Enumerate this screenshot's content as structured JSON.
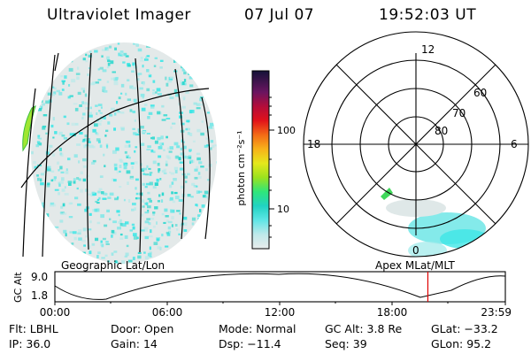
{
  "header": {
    "title": "Ultraviolet Imager",
    "date": "07 Jul 07",
    "time": "19:52:03 UT"
  },
  "colorbar": {
    "label": "photon cm⁻²s⁻¹",
    "ticks": [
      "100",
      "10"
    ]
  },
  "polar": {
    "clock_labels": {
      "top": "12",
      "left": "18",
      "right": "6",
      "bottom": "0"
    },
    "lat_labels": [
      "60",
      "70",
      "80"
    ]
  },
  "projection_labels": {
    "left": "Geographic Lat/Lon",
    "right": "Apex MLat/MLT"
  },
  "altitude_plot": {
    "axis_label": "GC Alt",
    "y_ticks": [
      "9.0",
      "1.8"
    ],
    "x_ticks": [
      "00:00",
      "06:00",
      "12:00",
      "18:00",
      "23:59"
    ],
    "marker_time_fraction": 0.828
  },
  "footer": {
    "row1": [
      {
        "label": "Flt:",
        "value": "LBHL"
      },
      {
        "label": "Door:",
        "value": "Open"
      },
      {
        "label": "Mode:",
        "value": "Normal"
      },
      {
        "label": "GC Alt:",
        "value": "3.8 Re"
      },
      {
        "label": "GLat:",
        "value": "−33.2"
      }
    ],
    "row2": [
      {
        "label": "IP:",
        "value": "36.0"
      },
      {
        "label": "Gain:",
        "value": "14"
      },
      {
        "label": "Dsp:",
        "value": "−11.4"
      },
      {
        "label": "Seq:",
        "value": "39"
      },
      {
        "label": "GLon:",
        "value": "95.2"
      }
    ]
  },
  "colors": {
    "speckle_cyan": "#3fe6e6",
    "haze": "#dfe8e8",
    "marker_red": "#e00000"
  }
}
